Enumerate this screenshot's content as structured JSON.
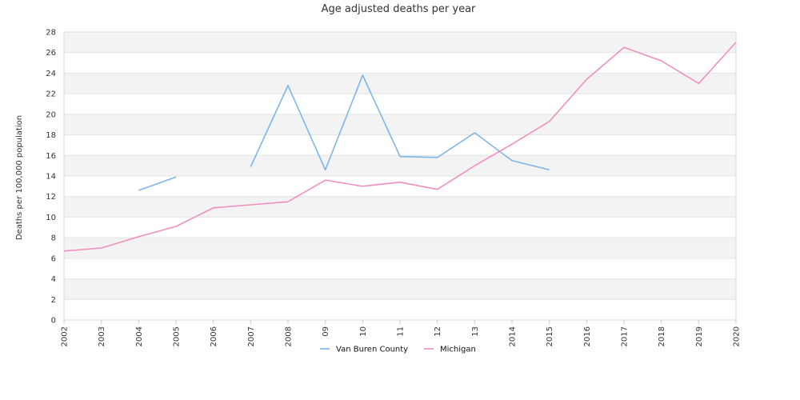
{
  "chart_data": {
    "type": "line",
    "title": "Age adjusted deaths per year",
    "xlabel": "",
    "ylabel": "Deaths per 100,000 population",
    "ylim": [
      0,
      28
    ],
    "yticks": [
      0,
      2,
      4,
      6,
      8,
      10,
      12,
      14,
      16,
      18,
      20,
      22,
      24,
      26,
      28
    ],
    "x": [
      "2002",
      "2003",
      "2004",
      "2005",
      "2006",
      "2007",
      "2008",
      "09",
      "10",
      "11",
      "12",
      "13",
      "2014",
      "2015",
      "2016",
      "2017",
      "2018",
      "2019",
      "2020"
    ],
    "grid": "horizontal bands",
    "legend_position": "bottom",
    "series": [
      {
        "name": "Van Buren County",
        "color": "#7cb5ec",
        "values": [
          null,
          null,
          12.6,
          13.9,
          null,
          14.9,
          22.8,
          14.6,
          23.8,
          15.9,
          15.8,
          18.2,
          15.5,
          14.6,
          null,
          null,
          null,
          null,
          null
        ]
      },
      {
        "name": "Michigan",
        "color": "#f08fbf",
        "values": [
          6.7,
          7.0,
          8.1,
          9.1,
          10.9,
          11.2,
          11.5,
          13.6,
          13.0,
          13.4,
          12.7,
          15.0,
          17.1,
          19.3,
          23.4,
          26.5,
          25.2,
          23.0,
          27.0
        ]
      }
    ]
  }
}
